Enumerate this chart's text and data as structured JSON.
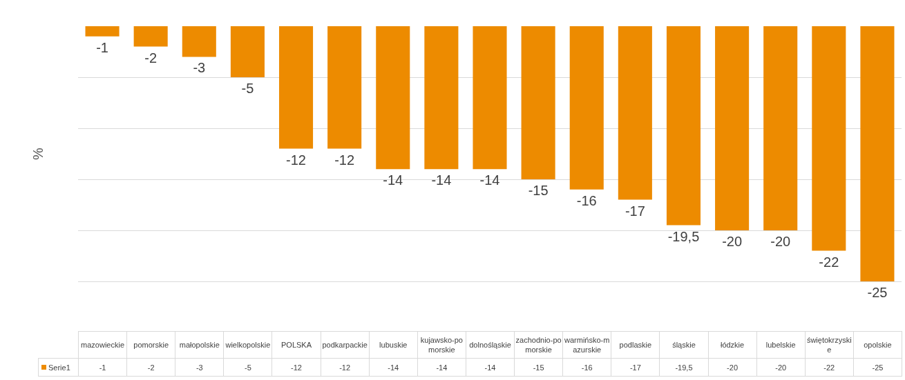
{
  "chart_data": {
    "type": "bar",
    "ylabel": "%",
    "categories": [
      "mazowieckie",
      "pomorskie",
      "małopolskie",
      "wielkopolskie",
      "POLSKA",
      "podkarpackie",
      "lubuskie",
      "kujawsko-pomorskie",
      "dolnośląskie",
      "zachodnio-pomorskie",
      "warmińsko-mazurskie",
      "podlaskie",
      "śląskie",
      "łódzkie",
      "lubelskie",
      "świętokrzyskie",
      "opolskie"
    ],
    "series": [
      {
        "name": "Serie1",
        "color": "#ed8b00",
        "values": [
          -1,
          -2,
          -3,
          -5,
          -12,
          -12,
          -14,
          -14,
          -14,
          -15,
          -16,
          -17,
          -19.5,
          -20,
          -20,
          -22,
          -25
        ],
        "value_labels": [
          "-1",
          "-2",
          "-3",
          "-5",
          "-12",
          "-12",
          "-14",
          "-14",
          "-14",
          "-15",
          "-16",
          "-17",
          "-19,5",
          "-20",
          "-20",
          "-22",
          "-25"
        ]
      }
    ],
    "ylim": [
      -25,
      0
    ],
    "yticks": [
      {
        "value": -25,
        "label": null
      },
      {
        "value": -20,
        "label": null
      },
      {
        "value": -15,
        "label": null
      },
      {
        "value": -10,
        "label": null
      },
      {
        "value": -5,
        "label": null
      }
    ],
    "grid": "y",
    "tick_labels": "x",
    "legend": "bottom"
  }
}
